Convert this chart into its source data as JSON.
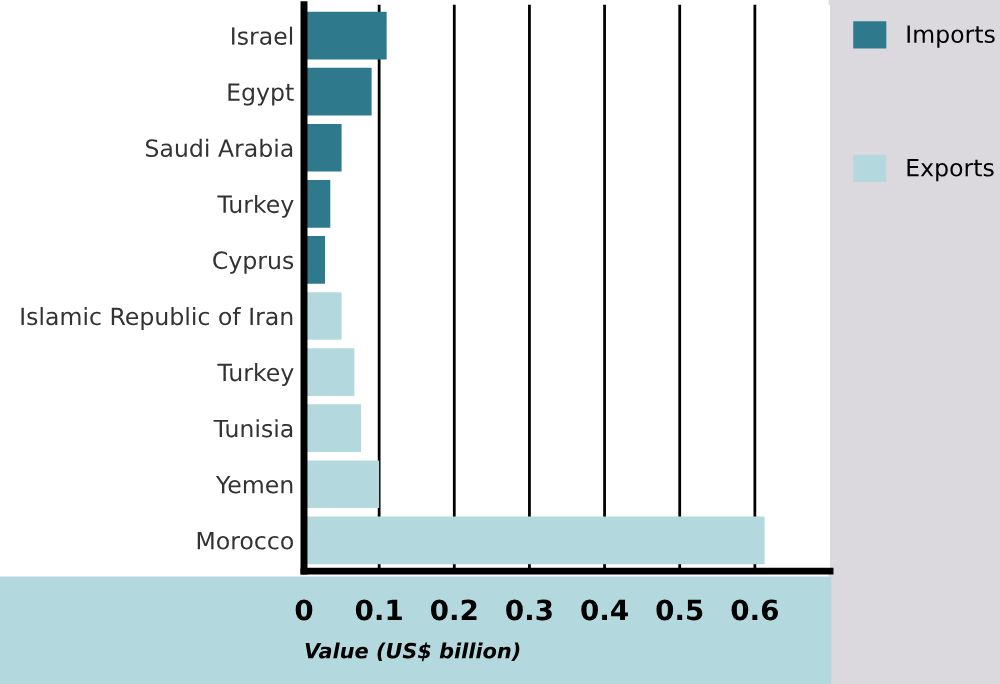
{
  "chart_data": {
    "type": "bar",
    "orientation": "horizontal",
    "xlabel": "Value (US$ billion)",
    "categories": [
      "Israel",
      "Egypt",
      "Saudi Arabia",
      "Turkey",
      "Cyprus",
      "Islamic Republic of Iran",
      "Turkey",
      "Tunisia",
      "Yemen",
      "Morocco"
    ],
    "series": [
      {
        "name": "Imports",
        "color": "#2e7a8c",
        "values": [
          0.11,
          0.09,
          0.05,
          0.035,
          0.028,
          null,
          null,
          null,
          null,
          null
        ]
      },
      {
        "name": "Exports",
        "color": "#b3d9df",
        "values": [
          null,
          null,
          null,
          null,
          null,
          0.05,
          0.067,
          0.076,
          0.1,
          0.613
        ]
      }
    ],
    "xlim": [
      0,
      0.7
    ],
    "xticks": [
      0,
      0.1,
      0.2,
      0.3,
      0.4,
      0.5,
      0.6
    ],
    "grid": "x",
    "legend": "right"
  }
}
